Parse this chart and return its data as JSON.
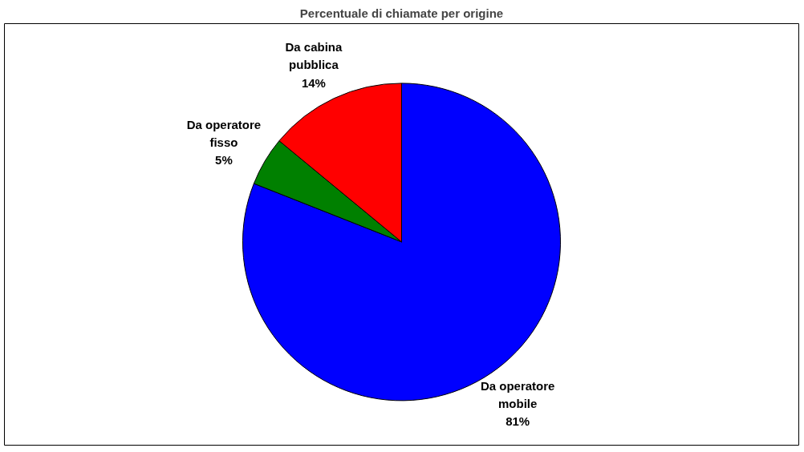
{
  "chart_data": {
    "type": "pie",
    "title": "Percentuale di chiamate per origine",
    "categories": [
      "Da operatore mobile",
      "Da operatore fisso",
      "Da cabina pubblica"
    ],
    "values": [
      81,
      5,
      14
    ],
    "colors": [
      "#0000ff",
      "#008000",
      "#ff0000"
    ],
    "value_labels": [
      "81%",
      "5%",
      "14%"
    ]
  }
}
